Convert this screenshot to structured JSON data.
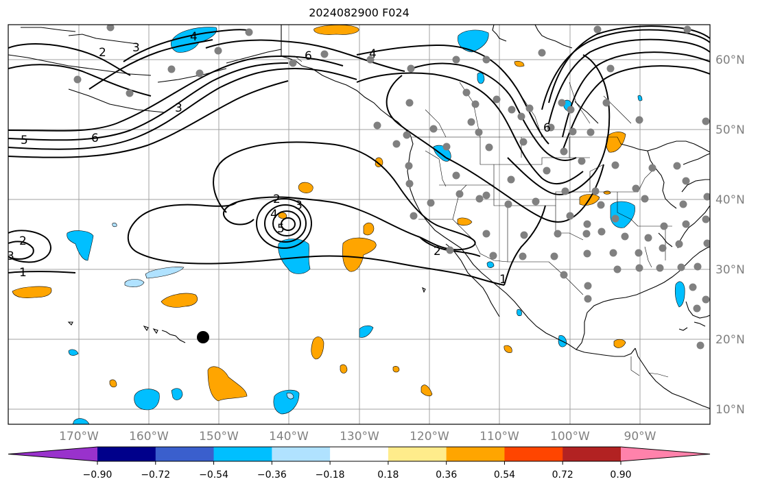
{
  "title": "2024082900 F024",
  "latitude_labels": [
    "60°N",
    "50°N",
    "40°N",
    "30°N",
    "20°N",
    "10°N"
  ],
  "longitude_labels": [
    "170°W",
    "160°W",
    "150°W",
    "140°W",
    "130°W",
    "120°W",
    "110°W",
    "100°W",
    "90°W"
  ],
  "contour_labels": [
    "4",
    "6",
    "4",
    "3",
    "2",
    "3",
    "5",
    "6",
    "6",
    "2",
    "3",
    "4",
    "5",
    "2",
    "3",
    "1",
    "2",
    "1"
  ],
  "colorbar": {
    "tick_labels": [
      "−0.90",
      "−0.72",
      "−0.54",
      "−0.36",
      "−0.18",
      "0.18",
      "0.36",
      "0.54",
      "0.72",
      "0.90"
    ],
    "colors": [
      "#9932cc",
      "#00008b",
      "#3a5fcd",
      "#00bfff",
      "#b0e2ff",
      "#ffffff",
      "#ffec8b",
      "#ffa500",
      "#ff4500",
      "#b22222",
      "#ff82ab"
    ]
  },
  "colors": {
    "positive": "#ffa500",
    "negative": "#00bfff",
    "light_negative": "#b0e2ff",
    "station_dot": "#808080",
    "grid": "#a0a0a0"
  }
}
